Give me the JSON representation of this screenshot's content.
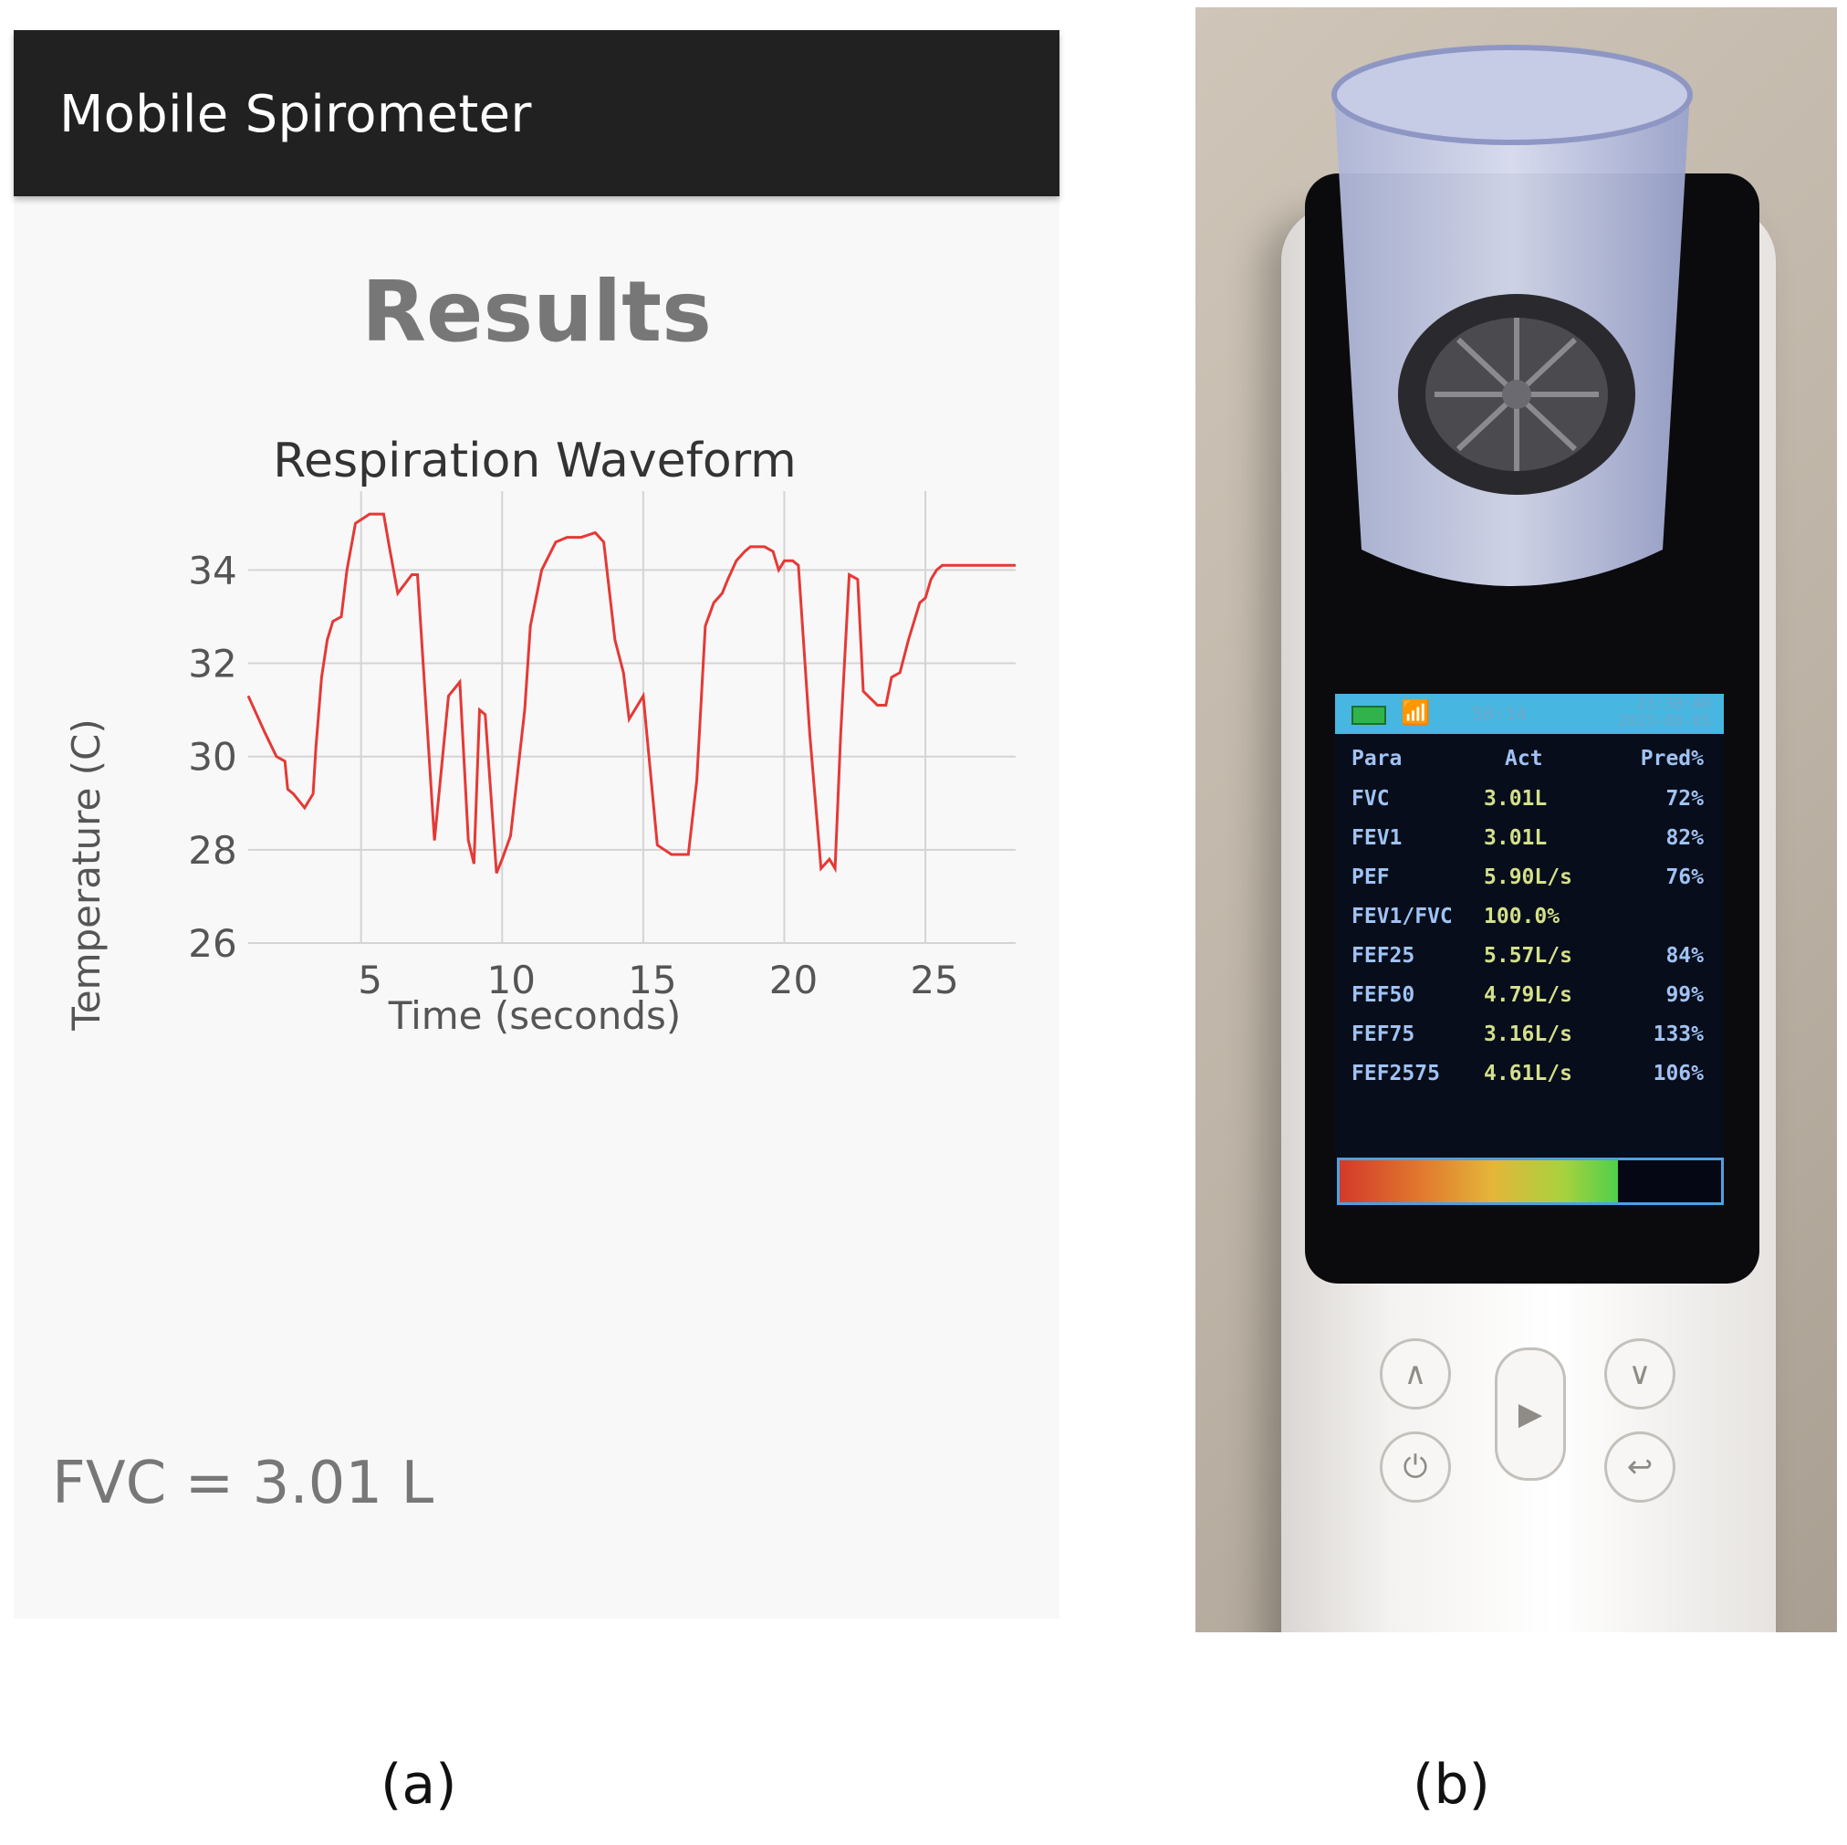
{
  "app": {
    "title": "Mobile Spirometer",
    "heading": "Results",
    "fvc_text": "FVC = 3.01 L"
  },
  "chart_data": {
    "type": "line",
    "title": "Respiration Waveform",
    "xlabel": "Time (seconds)",
    "ylabel": "Temperature (C)",
    "xlim": [
      1,
      28.2
    ],
    "ylim": [
      26,
      35.3
    ],
    "xticks": [
      5,
      10,
      15,
      20,
      25
    ],
    "yticks": [
      26,
      28,
      30,
      32,
      34
    ],
    "grid": true,
    "color": "#e53935",
    "series": [
      {
        "x": [
          1.0,
          1.3,
          1.6,
          2.0,
          2.3,
          2.4,
          2.6,
          3.0,
          3.3,
          3.4,
          3.6,
          3.8,
          4.0,
          4.3,
          4.5,
          4.8,
          5.3,
          5.8,
          6.0,
          6.3,
          6.8,
          7.0,
          7.6,
          8.1,
          8.5,
          8.8,
          9.0,
          9.2,
          9.4,
          9.8,
          10.0,
          10.3,
          10.8,
          11.0,
          11.4,
          11.9,
          12.3,
          12.8,
          13.3,
          13.6,
          14.0,
          14.3,
          14.5,
          15.0,
          15.5,
          16.0,
          16.3,
          16.6,
          16.9,
          17.2,
          17.5,
          17.8,
          18.0,
          18.3,
          18.6,
          18.8,
          19.3,
          19.6,
          19.8,
          20.0,
          20.3,
          20.5,
          20.9,
          21.3,
          21.6,
          21.8,
          22.0,
          22.3,
          22.6,
          22.8,
          23.3,
          23.6,
          23.8,
          24.1,
          24.4,
          24.8,
          25.0,
          25.2,
          25.4,
          25.6,
          25.8,
          26.2,
          26.5,
          26.7,
          27.0,
          27.2,
          27.5,
          27.7,
          28.0,
          28.2
        ],
        "y": [
          31.3,
          30.9,
          30.5,
          30.0,
          29.9,
          29.3,
          29.2,
          28.9,
          29.2,
          30.2,
          31.7,
          32.5,
          32.9,
          33.0,
          34.0,
          35.0,
          35.2,
          35.2,
          34.5,
          33.5,
          33.9,
          33.9,
          28.2,
          31.3,
          31.6,
          28.2,
          27.7,
          31.0,
          30.9,
          27.5,
          27.8,
          28.3,
          31.0,
          32.8,
          34.0,
          34.6,
          34.7,
          34.7,
          34.8,
          34.6,
          32.5,
          31.8,
          30.8,
          31.3,
          28.1,
          27.9,
          27.9,
          27.9,
          29.5,
          32.8,
          33.3,
          33.5,
          33.8,
          34.2,
          34.4,
          34.5,
          34.5,
          34.4,
          34.0,
          34.2,
          34.2,
          34.1,
          30.5,
          27.6,
          27.8,
          27.6,
          30.5,
          33.9,
          33.8,
          31.4,
          31.1,
          31.1,
          31.7,
          31.8,
          32.5,
          33.3,
          33.4,
          33.8,
          34.0,
          34.1,
          34.1,
          34.1,
          34.1,
          34.1,
          34.1,
          34.1,
          34.1,
          34.1,
          34.1,
          34.1
        ]
      }
    ]
  },
  "device": {
    "status_center": "50:14",
    "status_time": "23:30:40",
    "status_date": "2023-08-05",
    "battery_icon": "battery-icon",
    "signal_icon": "wireless-signal-icon",
    "table_headers": {
      "para": "Para",
      "act": "Act",
      "pred": "Pred%"
    },
    "rows": [
      {
        "para": "FVC",
        "act": "3.01L",
        "pred": "72%"
      },
      {
        "para": "FEV1",
        "act": "3.01L",
        "pred": "82%"
      },
      {
        "para": "PEF",
        "act": "5.90L/s",
        "pred": "76%"
      },
      {
        "para": "FEV1/FVC",
        "act": "100.0%",
        "pred": ""
      },
      {
        "para": "FEF25",
        "act": "5.57L/s",
        "pred": "84%"
      },
      {
        "para": "FEF50",
        "act": "4.79L/s",
        "pred": "99%"
      },
      {
        "para": "FEF75",
        "act": "3.16L/s",
        "pred": "133%"
      },
      {
        "para": "FEF2575",
        "act": "4.61L/s",
        "pred": "106%"
      }
    ],
    "progress_fraction": 0.73,
    "buttons": {
      "up": "∧",
      "down": "∨",
      "play": "▶",
      "power": "⏻",
      "back": "↩"
    }
  },
  "captions": {
    "a": "(a)",
    "b": "(b)"
  }
}
